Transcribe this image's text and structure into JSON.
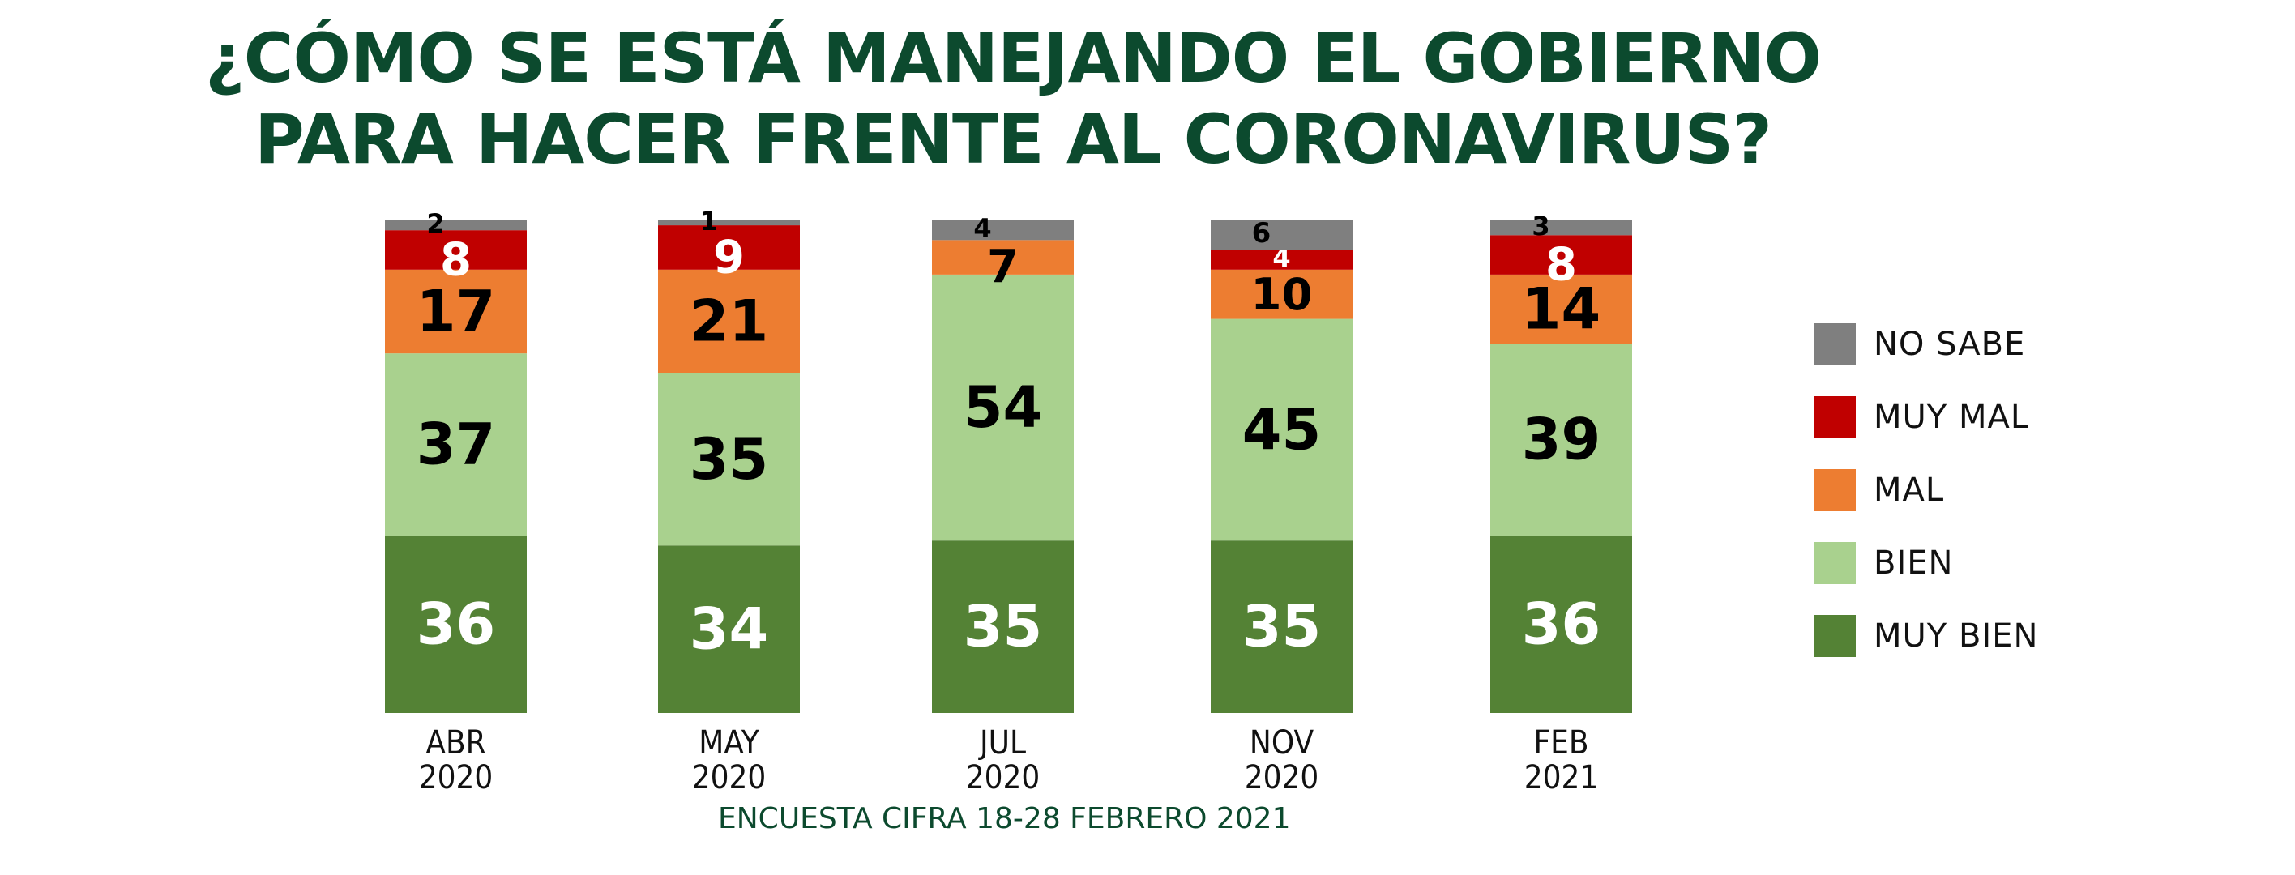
{
  "title": {
    "line1": "¿CÓMO SE ESTÁ MANEJANDO EL GOBIERNO",
    "line2": "PARA HACER FRENTE AL CORONAVIRUS?"
  },
  "source": "ENCUESTA CIFRA 18-28 FEBRERO 2021",
  "chart_data": {
    "type": "bar",
    "stacked": true,
    "orientation": "vertical",
    "categories": [
      [
        "ABR",
        "2020"
      ],
      [
        "MAY",
        "2020"
      ],
      [
        "JUL",
        "2020"
      ],
      [
        "NOV",
        "2020"
      ],
      [
        "FEB",
        "2021"
      ]
    ],
    "series": [
      {
        "name": "MUY BIEN",
        "color": "#548235",
        "label_color": "#ffffff",
        "values": [
          36,
          34,
          35,
          35,
          36
        ]
      },
      {
        "name": "BIEN",
        "color": "#a9d18e",
        "label_color": "#000000",
        "values": [
          37,
          35,
          54,
          45,
          39
        ]
      },
      {
        "name": "MAL",
        "color": "#ed7d31",
        "label_color": "#000000",
        "values": [
          17,
          21,
          7,
          10,
          14
        ]
      },
      {
        "name": "MUY MAL",
        "color": "#c00000",
        "label_color": "#ffffff",
        "values": [
          8,
          9,
          0,
          4,
          8
        ]
      },
      {
        "name": "NO SABE",
        "color": "#7f7f7f",
        "label_color": "#000000",
        "values": [
          2,
          1,
          4,
          6,
          3
        ]
      }
    ],
    "legend_position": "right",
    "grid": false
  },
  "legend_order": [
    "NO SABE",
    "MUY MAL",
    "MAL",
    "BIEN",
    "MUY BIEN"
  ]
}
